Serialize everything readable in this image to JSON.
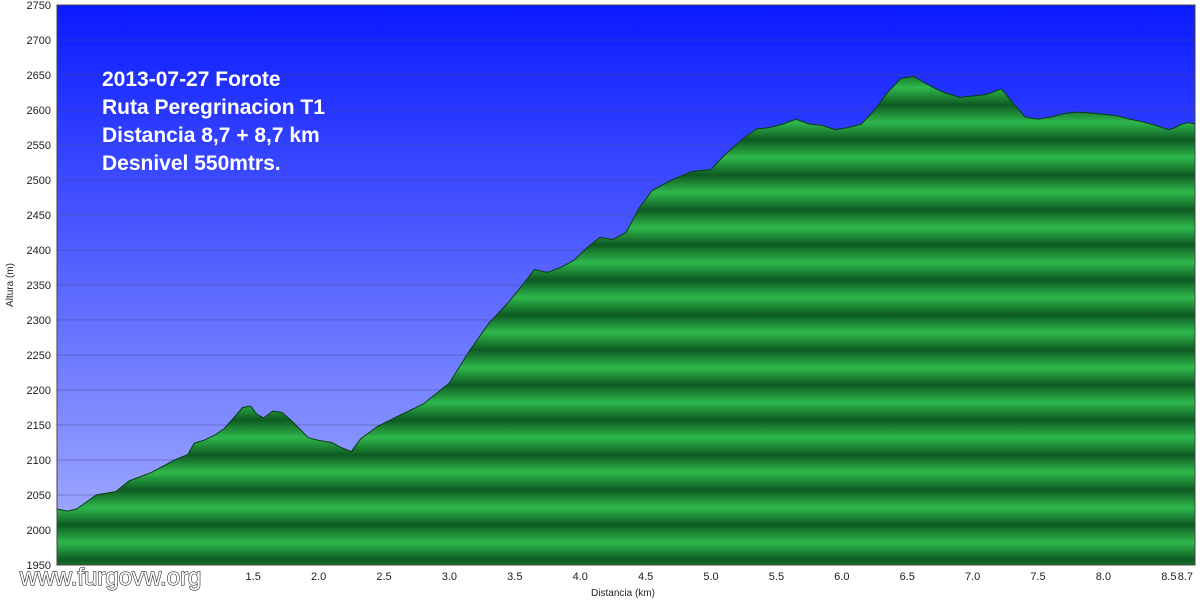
{
  "chart_data": {
    "type": "area",
    "xlabel": "Distancia  (km)",
    "ylabel": "Altura (m)",
    "xlim": [
      0.0,
      8.7
    ],
    "ylim": [
      1950,
      2750
    ],
    "y_ticks": [
      1950,
      2000,
      2050,
      2100,
      2150,
      2200,
      2250,
      2300,
      2350,
      2400,
      2450,
      2500,
      2550,
      2600,
      2650,
      2700,
      2750
    ],
    "x_ticks": [
      {
        "value": 1.5,
        "label": "1.5"
      },
      {
        "value": 2.0,
        "label": "2.0"
      },
      {
        "value": 2.5,
        "label": "2.5"
      },
      {
        "value": 3.0,
        "label": "3.0"
      },
      {
        "value": 3.5,
        "label": "3.5"
      },
      {
        "value": 4.0,
        "label": "4.0"
      },
      {
        "value": 4.5,
        "label": "4.5"
      },
      {
        "value": 5.0,
        "label": "5.0"
      },
      {
        "value": 5.5,
        "label": "5.5"
      },
      {
        "value": 6.0,
        "label": "6.0"
      },
      {
        "value": 6.5,
        "label": "6.5"
      },
      {
        "value": 7.0,
        "label": "7.0"
      },
      {
        "value": 7.5,
        "label": "7.5"
      },
      {
        "value": 8.0,
        "label": "8.0"
      },
      {
        "value": 8.5,
        "label": "8.5"
      },
      {
        "value": 8.7,
        "label": "8.7"
      }
    ],
    "grid": true,
    "colors": {
      "sky_top": "#0a1aff",
      "sky_bottom": "#aab4ff",
      "terrain_light": "#2fb84c",
      "terrain_dark": "#0d5a22",
      "terrain_edge": "#0a3d14"
    },
    "x": [
      0.0,
      0.08,
      0.15,
      0.3,
      0.45,
      0.55,
      0.62,
      0.72,
      0.8,
      0.9,
      1.0,
      1.05,
      1.12,
      1.2,
      1.28,
      1.35,
      1.42,
      1.48,
      1.53,
      1.58,
      1.65,
      1.72,
      1.8,
      1.92,
      2.0,
      2.1,
      2.17,
      2.25,
      2.32,
      2.45,
      2.6,
      2.8,
      3.0,
      3.15,
      3.3,
      3.45,
      3.55,
      3.65,
      3.75,
      3.85,
      3.95,
      4.05,
      4.15,
      4.25,
      4.35,
      4.45,
      4.55,
      4.7,
      4.85,
      5.0,
      5.1,
      5.25,
      5.35,
      5.45,
      5.55,
      5.65,
      5.75,
      5.85,
      5.95,
      6.05,
      6.15,
      6.25,
      6.35,
      6.45,
      6.55,
      6.62,
      6.7,
      6.78,
      6.9,
      7.0,
      7.1,
      7.22,
      7.3,
      7.4,
      7.5,
      7.6,
      7.7,
      7.8,
      7.95,
      8.1,
      8.2,
      8.3,
      8.4,
      8.5,
      8.55,
      8.6,
      8.65,
      8.7
    ],
    "y": [
      2030,
      2027,
      2030,
      2050,
      2055,
      2070,
      2075,
      2082,
      2090,
      2100,
      2108,
      2124,
      2128,
      2135,
      2145,
      2160,
      2175,
      2177,
      2165,
      2160,
      2170,
      2168,
      2155,
      2132,
      2128,
      2125,
      2118,
      2112,
      2130,
      2148,
      2162,
      2180,
      2210,
      2255,
      2295,
      2325,
      2348,
      2372,
      2368,
      2375,
      2385,
      2403,
      2418,
      2415,
      2425,
      2460,
      2485,
      2500,
      2512,
      2515,
      2535,
      2560,
      2573,
      2575,
      2580,
      2587,
      2580,
      2578,
      2572,
      2575,
      2580,
      2600,
      2625,
      2645,
      2648,
      2640,
      2632,
      2625,
      2618,
      2620,
      2622,
      2630,
      2612,
      2590,
      2587,
      2590,
      2595,
      2597,
      2595,
      2592,
      2587,
      2583,
      2578,
      2572,
      2575,
      2580,
      2582,
      2580
    ]
  },
  "overlay": {
    "line1": "2013-07-27 Forote",
    "line2": "Ruta Peregrinacion T1",
    "line3": "Distancia 8,7 + 8,7 km",
    "line4": "Desnivel 550mtrs."
  },
  "watermark": "www.furgovw.org"
}
